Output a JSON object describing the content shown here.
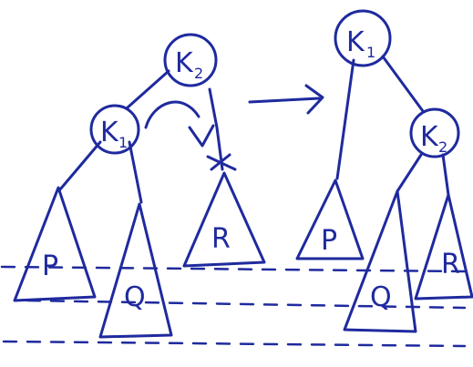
{
  "diagram": {
    "left_tree": {
      "root": {
        "letter": "K",
        "sub": "2"
      },
      "child": {
        "letter": "K",
        "sub": "1"
      },
      "subtrees": [
        "P",
        "Q",
        "R"
      ]
    },
    "right_tree": {
      "root": {
        "letter": "K",
        "sub": "1"
      },
      "child": {
        "letter": "K",
        "sub": "2"
      },
      "subtrees": [
        "P",
        "Q",
        "R"
      ]
    }
  },
  "colors": {
    "ink": "#1f2a9e",
    "background": "#ffffff"
  }
}
